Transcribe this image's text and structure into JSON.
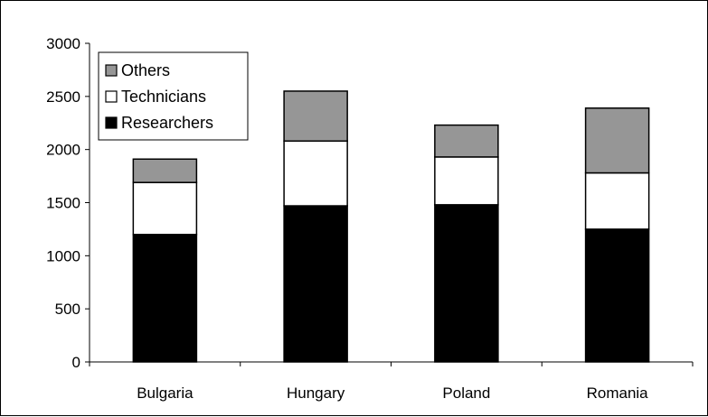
{
  "chart_data": {
    "type": "bar",
    "stacked": true,
    "categories": [
      "Bulgaria",
      "Hungary",
      "Poland",
      "Romania"
    ],
    "series": [
      {
        "name": "Researchers",
        "values": [
          1200,
          1470,
          1480,
          1250
        ],
        "color": "#000000"
      },
      {
        "name": "Technicians",
        "values": [
          490,
          610,
          450,
          530
        ],
        "color": "#ffffff"
      },
      {
        "name": "Others",
        "values": [
          220,
          470,
          300,
          610
        ],
        "color": "#969696"
      }
    ],
    "legend_order": [
      "Others",
      "Technicians",
      "Researchers"
    ],
    "legend_position": "top-left",
    "ylim": [
      0,
      3000
    ],
    "yticks": [
      0,
      500,
      1000,
      1500,
      2000,
      2500,
      3000
    ],
    "title": "",
    "xlabel": "",
    "ylabel": "",
    "grid": false
  }
}
